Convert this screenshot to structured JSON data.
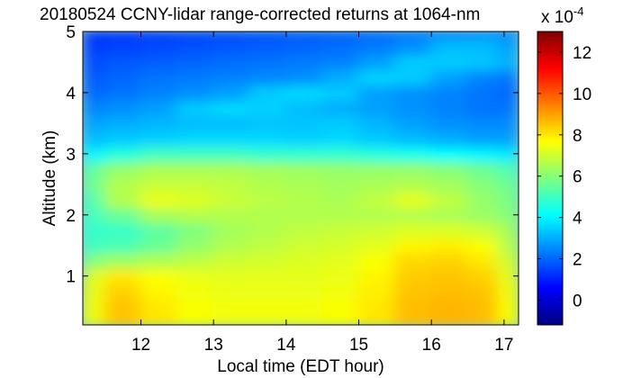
{
  "chart_data": {
    "type": "heatmap",
    "title": "20180524 CCNY-lidar range-corrected returns at 1064-nm",
    "xlabel": "Local time (EDT hour)",
    "ylabel": "Altitude (km)",
    "xlim": [
      11.2,
      17.2
    ],
    "ylim": [
      0.2,
      5.0
    ],
    "x_ticks": [
      12,
      13,
      14,
      15,
      16,
      17
    ],
    "y_ticks": [
      1,
      2,
      3,
      4,
      5
    ],
    "colorbar": {
      "label": "x 10",
      "exponent": "-4",
      "range": [
        -1.2,
        13
      ],
      "ticks": [
        0,
        2,
        4,
        6,
        8,
        10,
        12
      ],
      "colormap": "jet"
    },
    "altitude_km": [
      0.25,
      0.5,
      0.75,
      1.0,
      1.25,
      1.5,
      1.75,
      2.0,
      2.25,
      2.5,
      2.75,
      3.0,
      3.25,
      3.5,
      3.75,
      4.0,
      4.25,
      4.5,
      4.75,
      5.0
    ],
    "time_hour": [
      11.25,
      11.75,
      12.25,
      12.75,
      13.25,
      13.75,
      14.25,
      14.75,
      15.25,
      15.75,
      16.25,
      16.75,
      17.1
    ],
    "values_e4": [
      [
        7.5,
        8.5,
        8.0,
        7.6,
        7.5,
        7.5,
        7.5,
        7.6,
        8.0,
        8.6,
        8.7,
        8.6,
        7.6
      ],
      [
        7.5,
        8.5,
        8.0,
        7.6,
        7.5,
        7.5,
        7.5,
        7.6,
        8.0,
        8.6,
        8.7,
        8.6,
        7.6
      ],
      [
        7.4,
        8.3,
        7.8,
        7.5,
        7.4,
        7.4,
        7.4,
        7.5,
        7.9,
        8.5,
        8.6,
        8.5,
        7.5
      ],
      [
        7.2,
        8.0,
        7.6,
        7.4,
        7.3,
        7.3,
        7.3,
        7.4,
        7.8,
        8.4,
        8.5,
        8.3,
        7.3
      ],
      [
        6.0,
        6.4,
        6.6,
        6.8,
        7.0,
        7.1,
        7.2,
        7.3,
        7.6,
        8.2,
        8.3,
        8.0,
        7.0
      ],
      [
        5.0,
        5.2,
        5.6,
        6.2,
        6.6,
        6.8,
        7.0,
        7.1,
        7.3,
        7.8,
        7.9,
        7.6,
        6.6
      ],
      [
        4.8,
        4.9,
        5.4,
        5.9,
        6.4,
        6.6,
        6.8,
        6.9,
        7.0,
        7.2,
        7.2,
        7.0,
        6.4
      ],
      [
        5.0,
        5.6,
        6.4,
        6.6,
        6.6,
        6.6,
        6.6,
        6.6,
        6.6,
        6.6,
        6.5,
        6.3,
        6.0
      ],
      [
        5.2,
        6.6,
        7.4,
        7.2,
        6.9,
        6.7,
        6.6,
        6.5,
        6.8,
        7.3,
        6.8,
        6.2,
        5.8
      ],
      [
        5.6,
        6.6,
        6.9,
        6.9,
        6.8,
        6.6,
        6.5,
        6.4,
        6.5,
        6.6,
        6.4,
        6.0,
        5.6
      ],
      [
        5.4,
        6.2,
        6.5,
        6.5,
        6.5,
        6.4,
        6.3,
        6.2,
        6.2,
        6.2,
        6.0,
        5.6,
        5.2
      ],
      [
        4.0,
        4.6,
        5.0,
        5.0,
        5.0,
        4.8,
        4.8,
        4.8,
        4.6,
        4.4,
        4.2,
        4.0,
        3.8
      ],
      [
        3.2,
        3.4,
        3.5,
        3.6,
        3.6,
        3.6,
        3.5,
        3.6,
        3.4,
        3.2,
        3.0,
        2.8,
        2.8
      ],
      [
        2.8,
        3.0,
        3.1,
        3.2,
        3.2,
        3.3,
        3.3,
        3.4,
        3.1,
        2.8,
        2.6,
        2.5,
        2.5
      ],
      [
        2.4,
        2.6,
        2.8,
        3.4,
        3.6,
        3.5,
        3.2,
        3.0,
        2.8,
        2.6,
        2.4,
        2.2,
        2.2
      ],
      [
        2.0,
        2.2,
        2.4,
        2.6,
        2.8,
        3.4,
        3.6,
        3.4,
        2.8,
        2.6,
        2.4,
        2.2,
        2.0
      ],
      [
        1.8,
        2.0,
        2.2,
        2.3,
        2.4,
        2.5,
        2.6,
        3.0,
        3.5,
        3.4,
        2.8,
        2.4,
        2.2
      ],
      [
        1.6,
        1.8,
        1.9,
        2.0,
        2.1,
        2.2,
        2.3,
        2.4,
        2.8,
        3.4,
        3.4,
        3.3,
        3.0
      ],
      [
        1.4,
        1.5,
        1.6,
        1.7,
        1.8,
        1.9,
        2.0,
        2.1,
        2.3,
        2.6,
        3.2,
        3.2,
        2.8
      ],
      [
        1.2,
        1.3,
        1.4,
        1.5,
        1.6,
        1.7,
        1.8,
        1.9,
        2.0,
        2.2,
        2.4,
        2.5,
        2.4
      ]
    ]
  }
}
